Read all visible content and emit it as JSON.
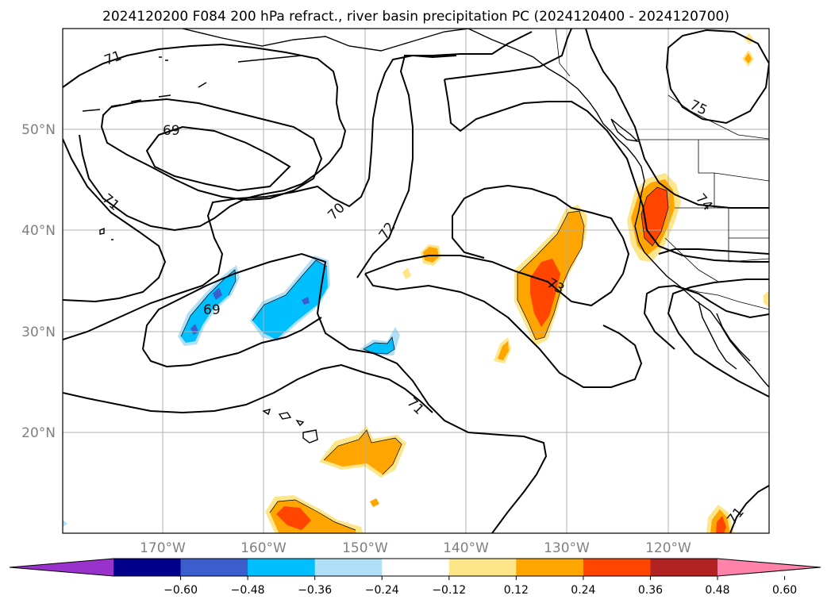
{
  "title": "2024120200 F084 200 hPa refract., river basin precipitation PC (2024120400 - 2024120700)",
  "lat_labels": [
    "50°N",
    "40°N",
    "30°N",
    "20°N"
  ],
  "lon_labels": [
    "170°W",
    "160°W",
    "150°W",
    "140°W",
    "130°W",
    "120°W"
  ],
  "colorbar": {
    "tick_labels": [
      "−0.60",
      "−0.48",
      "−0.36",
      "−0.24",
      "−0.12",
      "0.12",
      "0.24",
      "0.36",
      "0.48",
      "0.60"
    ],
    "colors": [
      "#9932cc",
      "#00008b",
      "#3a5fcd",
      "#00bfff",
      "#afe0f8",
      "#ffffff",
      "#fde68a",
      "#ffa500",
      "#ff4500",
      "#b22222",
      "#ff82ab"
    ]
  },
  "contour_labels": [
    "71",
    "69",
    "71",
    "70",
    "72",
    "69",
    "71",
    "73",
    "74",
    "75",
    "71"
  ],
  "colors": {
    "contour": "#000000",
    "grid": "#b0b0b0",
    "coast": "#000000"
  }
}
